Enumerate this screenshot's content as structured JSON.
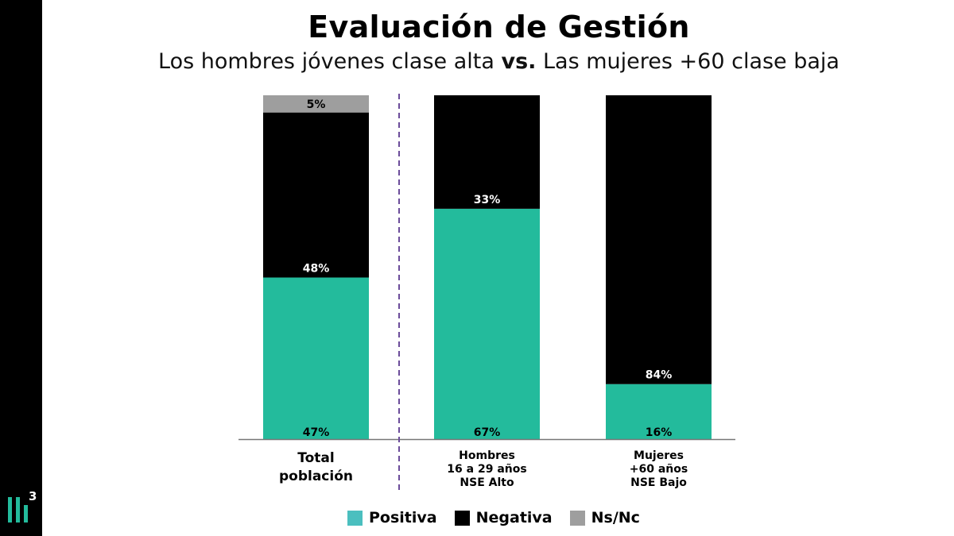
{
  "title": "Evaluación de Gestión",
  "subtitle": {
    "part1": "Los hombres jóvenes clase alta ",
    "vs": "vs.",
    "part2": " Las mujeres +60 clase baja"
  },
  "logo": {
    "name": "brand-logo",
    "glyph": "3"
  },
  "colors": {
    "positiva": "#23bb9c",
    "negativa": "#000000",
    "nsnc": "#9e9e9e",
    "divider": "#6b4c9a",
    "legend_positiva": "#4bbfbf"
  },
  "chart_data": {
    "type": "bar",
    "stacked": true,
    "title": "Evaluación de Gestión",
    "categories": [
      "Total\npoblación",
      "Hombres\n16 a 29 años\nNSE Alto",
      "Mujeres\n+60 años\nNSE Bajo"
    ],
    "series": [
      {
        "name": "Positiva",
        "values": [
          47,
          67,
          16
        ],
        "labels": [
          "47%",
          "67%",
          "16%"
        ]
      },
      {
        "name": "Negativa",
        "values": [
          48,
          33,
          84
        ],
        "labels": [
          "48%",
          "33%",
          "84%"
        ]
      },
      {
        "name": "Ns/Nc",
        "values": [
          5,
          0,
          0
        ],
        "labels": [
          "5%",
          "",
          ""
        ]
      }
    ],
    "ylim": [
      0,
      100
    ],
    "xlabel": "",
    "ylabel": "",
    "grid": false,
    "legend_position": "bottom"
  },
  "legend": [
    {
      "label": "Positiva",
      "color_key": "legend_positiva"
    },
    {
      "label": "Negativa",
      "color_key": "negativa"
    },
    {
      "label": "Ns/Nc",
      "color_key": "nsnc"
    }
  ]
}
